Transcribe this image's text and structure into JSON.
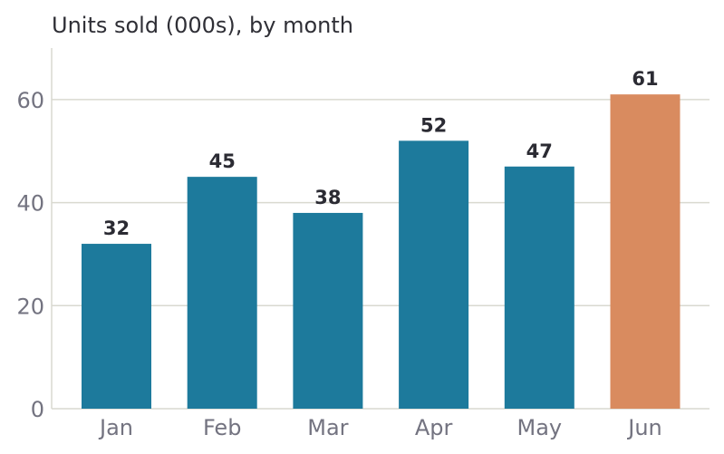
{
  "chart_data": {
    "type": "bar",
    "title": "Units sold (000s), by month",
    "xlabel": "",
    "ylabel": "",
    "categories": [
      "Jan",
      "Feb",
      "Mar",
      "Apr",
      "May",
      "Jun"
    ],
    "values": [
      32,
      45,
      38,
      52,
      47,
      61
    ],
    "data_labels": [
      "32",
      "45",
      "38",
      "52",
      "47",
      "61"
    ],
    "y_ticks": [
      0,
      20,
      40,
      60
    ],
    "y_tick_labels": [
      "0",
      "20",
      "40",
      "60"
    ],
    "ylim": [
      0,
      70
    ],
    "grid": "y",
    "legend": "none",
    "highlight_index": 5,
    "colors": {
      "bar": "#1d7a9c",
      "highlight": "#d98b5f",
      "grid": "#d9d9d0",
      "axis": "#d9d9d0"
    }
  }
}
